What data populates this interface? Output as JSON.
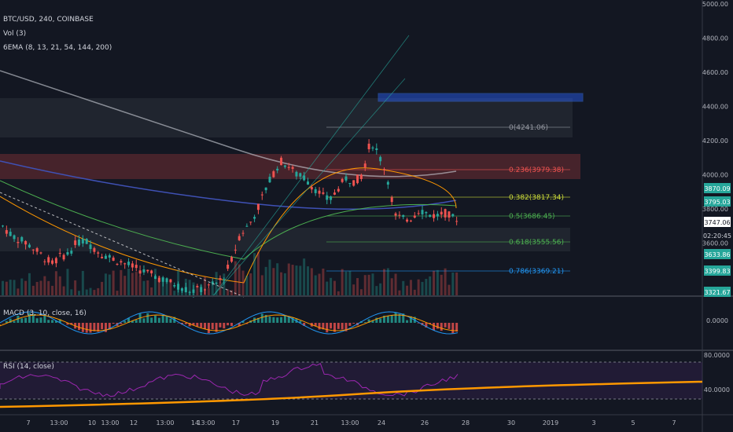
{
  "header": {
    "symbol": "BTC/USD, 240, COINBASE",
    "vol": "Vol (3)",
    "ema": "6EMA (8, 13, 21, 54, 144, 200)"
  },
  "macd_label": "MACD (3, 10, close, 16)",
  "rsi_label": "RSI (14, close)",
  "price_axis": [
    "5000.00",
    "4800.00",
    "4600.00",
    "4400.00",
    "4200.00",
    "4000.00",
    "3800.00",
    "3600.00"
  ],
  "price_tags": [
    {
      "text": "3870.09",
      "bg": "#26a69a",
      "fg": "#ffffff"
    },
    {
      "text": "3795.03",
      "bg": "#26a69a",
      "fg": "#ffffff"
    },
    {
      "text": "3747.06",
      "bg": "#ffffff",
      "fg": "#131722"
    },
    {
      "text": "02:20:45",
      "bg": "#131722",
      "fg": "#d1d4dc"
    },
    {
      "text": "3633.86",
      "bg": "#26a69a",
      "fg": "#ffffff"
    },
    {
      "text": "3399.83",
      "bg": "#26a69a",
      "fg": "#ffffff"
    },
    {
      "text": "3321.67",
      "bg": "#26a69a",
      "fg": "#ffffff"
    }
  ],
  "macd_axis": [
    "0.0000"
  ],
  "rsi_axis": [
    "80.0000",
    "40.0000"
  ],
  "time_axis": [
    "7",
    "13:00",
    "10",
    "13:00",
    "12",
    "13:00",
    "14",
    "13:00",
    "17",
    "19",
    "21",
    "13:00",
    "24",
    "26",
    "28",
    "30",
    "2019",
    "3",
    "5",
    "7"
  ],
  "fib_levels": [
    {
      "label": "0(4241.06)",
      "color": "#9598a1"
    },
    {
      "label": "0.236(3979.38)",
      "color": "#ef5350"
    },
    {
      "label": "0.382(3817.34)",
      "color": "#cddc39"
    },
    {
      "label": "0.5(3686.45)",
      "color": "#4caf50"
    },
    {
      "label": "0.618(3555.56)",
      "color": "#4caf50"
    },
    {
      "label": "0.786(3369.21)",
      "color": "#2196f3"
    }
  ],
  "colors": {
    "up": "#26a69a",
    "down": "#ef5350",
    "macd": "#2196f3",
    "signal": "#ff9800",
    "rsi": "#9c27b0"
  },
  "chart_data": {
    "type": "candlestick",
    "symbol": "BTC/USD",
    "interval": "240",
    "exchange": "COINBASE",
    "price_ylim": [
      3300,
      5000
    ],
    "indicators": [
      "Vol (3)",
      "6EMA (8, 13, 21, 54, 144, 200)",
      "MACD (3, 10, close, 16)",
      "RSI (14, close)"
    ],
    "close_path": [
      3700,
      3650,
      3620,
      3600,
      3560,
      3520,
      3480,
      3520,
      3540,
      3600,
      3620,
      3580,
      3540,
      3520,
      3500,
      3480,
      3460,
      3440,
      3420,
      3400,
      3380,
      3360,
      3340,
      3320,
      3330,
      3340,
      3360,
      3400,
      3500,
      3650,
      3700,
      3780,
      3900,
      4000,
      4080,
      4050,
      4000,
      3980,
      3930,
      3880,
      3850,
      3920,
      3980,
      3960,
      4000,
      4200,
      4120,
      4000,
      3760,
      3740,
      3750,
      3800,
      3770,
      3760,
      3780,
      3750,
      3747
    ],
    "fibonacci": {
      "0": 4241.06,
      "0.236": 3979.38,
      "0.382": 3817.34,
      "0.5": 3686.45,
      "0.618": 3555.56,
      "0.786": 3369.21
    }
  }
}
